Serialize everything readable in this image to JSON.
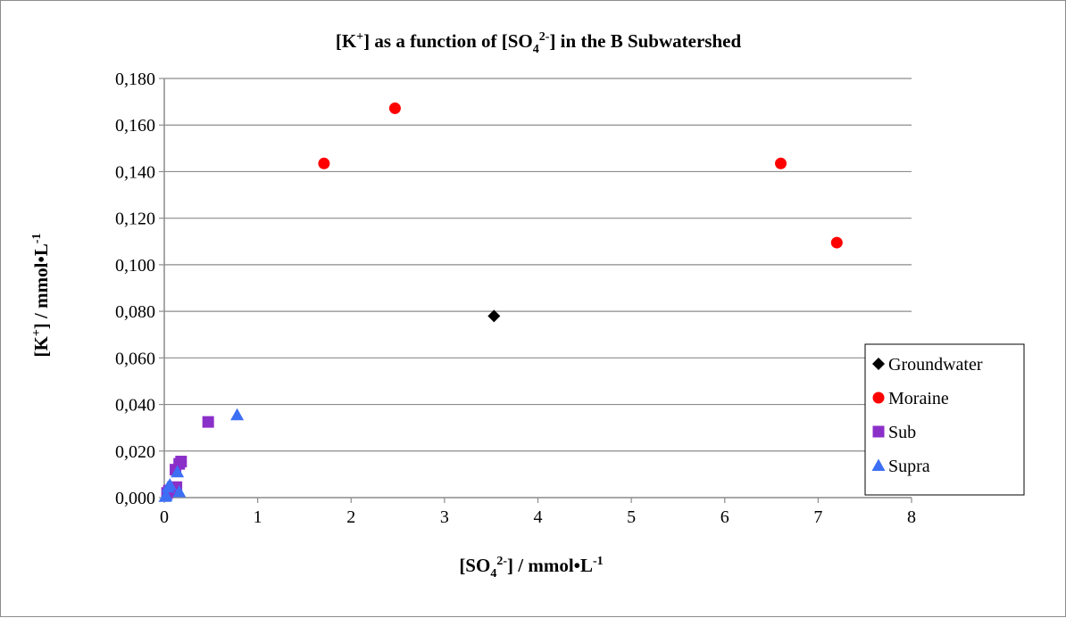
{
  "chart_data": {
    "type": "scatter",
    "title": {
      "pre": "[K",
      "sup1": "+",
      "mid": "] as a function of [SO",
      "sub": "4",
      "sup2": "2-",
      "post": "] in the B Subwatershed"
    },
    "xlabel": {
      "pre": "[SO",
      "sub": "4",
      "sup": "2-",
      "post": "] / mmol•L",
      "unit_sup": "-1"
    },
    "ylabel": {
      "pre": "[K",
      "sup": "+",
      "post": "] / mmol•L",
      "unit_sup": "-1"
    },
    "xlim": [
      0,
      8
    ],
    "ylim": [
      0,
      0.18
    ],
    "x_ticks": [
      "0",
      "1",
      "2",
      "3",
      "4",
      "5",
      "6",
      "7",
      "8"
    ],
    "y_ticks": [
      "0,000",
      "0,020",
      "0,040",
      "0,060",
      "0,080",
      "0,100",
      "0,120",
      "0,140",
      "0,160",
      "0,180"
    ],
    "grid": "horizontal",
    "legend_position": "right",
    "series": [
      {
        "name": "Groundwater",
        "marker": "diamond",
        "color": "#000000",
        "points": [
          [
            3.53,
            0.078
          ]
        ]
      },
      {
        "name": "Moraine",
        "marker": "circle",
        "color": "#ff0000",
        "points": [
          [
            1.71,
            0.1435
          ],
          [
            2.47,
            0.1672
          ],
          [
            6.6,
            0.1435
          ],
          [
            7.2,
            0.1095
          ]
        ]
      },
      {
        "name": "Sub",
        "marker": "square",
        "color": "#8b2fc9",
        "points": [
          [
            0.47,
            0.0325
          ],
          [
            0.18,
            0.0155
          ],
          [
            0.16,
            0.0145
          ],
          [
            0.12,
            0.012
          ],
          [
            0.13,
            0.0045
          ],
          [
            0.05,
            0.003
          ],
          [
            0.03,
            0.002
          ]
        ]
      },
      {
        "name": "Supra",
        "marker": "triangle",
        "color": "#3d6ff5",
        "points": [
          [
            0.78,
            0.0355
          ],
          [
            0.14,
            0.011
          ],
          [
            0.06,
            0.0055
          ],
          [
            0.04,
            0.0045
          ],
          [
            0.16,
            0.0025
          ],
          [
            0.02,
            0.001
          ],
          [
            0.01,
            0.0005
          ]
        ]
      }
    ]
  }
}
